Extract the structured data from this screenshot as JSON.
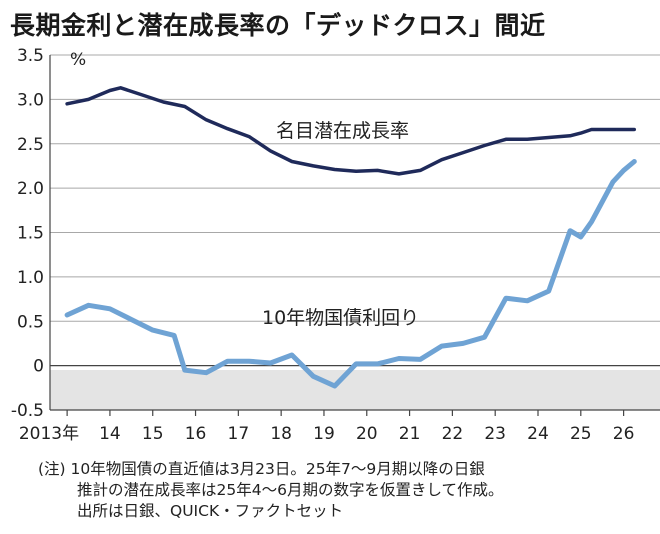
{
  "chart_data": {
    "type": "line",
    "title": "長期金利と潜在成長率の「デッドクロス」間近",
    "ylabel": "%",
    "ylim": [
      -0.5,
      3.5
    ],
    "yticks": [
      "3.5",
      "3.0",
      "2.5",
      "2.0",
      "1.5",
      "1.0",
      "0.5",
      "0",
      "-0.5"
    ],
    "ytick_values": [
      3.5,
      3.0,
      2.5,
      2.0,
      1.5,
      1.0,
      0.5,
      0,
      -0.5
    ],
    "xlim": [
      2013,
      2026.5
    ],
    "xticks": [
      {
        "label": "2013年",
        "value": 2013
      },
      {
        "label": "14",
        "value": 2014
      },
      {
        "label": "15",
        "value": 2015
      },
      {
        "label": "16",
        "value": 2016
      },
      {
        "label": "17",
        "value": 2017
      },
      {
        "label": "18",
        "value": 2018
      },
      {
        "label": "19",
        "value": 2019
      },
      {
        "label": "20",
        "value": 2020
      },
      {
        "label": "21",
        "value": 2021
      },
      {
        "label": "22",
        "value": 2022
      },
      {
        "label": "23",
        "value": 2023
      },
      {
        "label": "24",
        "value": 2024
      },
      {
        "label": "25",
        "value": 2025
      },
      {
        "label": "26",
        "value": 2026
      }
    ],
    "negative_region_shaded": true,
    "series": [
      {
        "name": "名目潜在成長率",
        "color": "#1f2a5a",
        "x": [
          2013.0,
          2013.5,
          2014.0,
          2014.25,
          2014.75,
          2015.25,
          2015.75,
          2016.25,
          2016.75,
          2017.25,
          2017.75,
          2018.25,
          2018.75,
          2019.25,
          2019.5,
          2019.75,
          2020.25,
          2020.75,
          2021.25,
          2021.75,
          2022.25,
          2022.75,
          2023.25,
          2023.75,
          2024.25,
          2024.75,
          2025.0,
          2025.25,
          2025.75,
          2026.25
        ],
        "values": [
          2.95,
          3.0,
          3.1,
          3.13,
          3.05,
          2.97,
          2.92,
          2.77,
          2.67,
          2.58,
          2.42,
          2.3,
          2.25,
          2.21,
          2.2,
          2.19,
          2.2,
          2.16,
          2.2,
          2.32,
          2.4,
          2.48,
          2.55,
          2.55,
          2.57,
          2.59,
          2.62,
          2.66,
          2.66,
          2.66
        ]
      },
      {
        "name": "10年物国債利回り",
        "color": "#6fa3d4",
        "x": [
          2013.0,
          2013.5,
          2014.0,
          2014.5,
          2015.0,
          2015.5,
          2015.75,
          2016.25,
          2016.75,
          2017.25,
          2017.75,
          2018.25,
          2018.75,
          2019.25,
          2019.75,
          2020.25,
          2020.75,
          2021.25,
          2021.75,
          2022.25,
          2022.75,
          2023.25,
          2023.75,
          2024.25,
          2024.75,
          2025.0,
          2025.25,
          2025.75,
          2026.0,
          2026.25
        ],
        "values": [
          0.57,
          0.68,
          0.64,
          0.52,
          0.4,
          0.34,
          -0.05,
          -0.08,
          0.05,
          0.05,
          0.03,
          0.12,
          -0.12,
          -0.23,
          0.02,
          0.02,
          0.08,
          0.07,
          0.22,
          0.25,
          0.32,
          0.76,
          0.73,
          0.84,
          1.52,
          1.45,
          1.62,
          2.07,
          2.2,
          2.3
        ]
      }
    ],
    "annotations": [
      {
        "text": "名目潜在成長率",
        "series": 0
      },
      {
        "text": "10年物国債利回り",
        "series": 1
      }
    ]
  },
  "notes": [
    "(注) 10年物国債の直近値は3月23日。25年7～9月期以降の日銀",
    "推計の潜在成長率は25年4～6月期の数字を仮置きして作成。",
    "出所は日銀、QUICK・ファクトセット"
  ]
}
